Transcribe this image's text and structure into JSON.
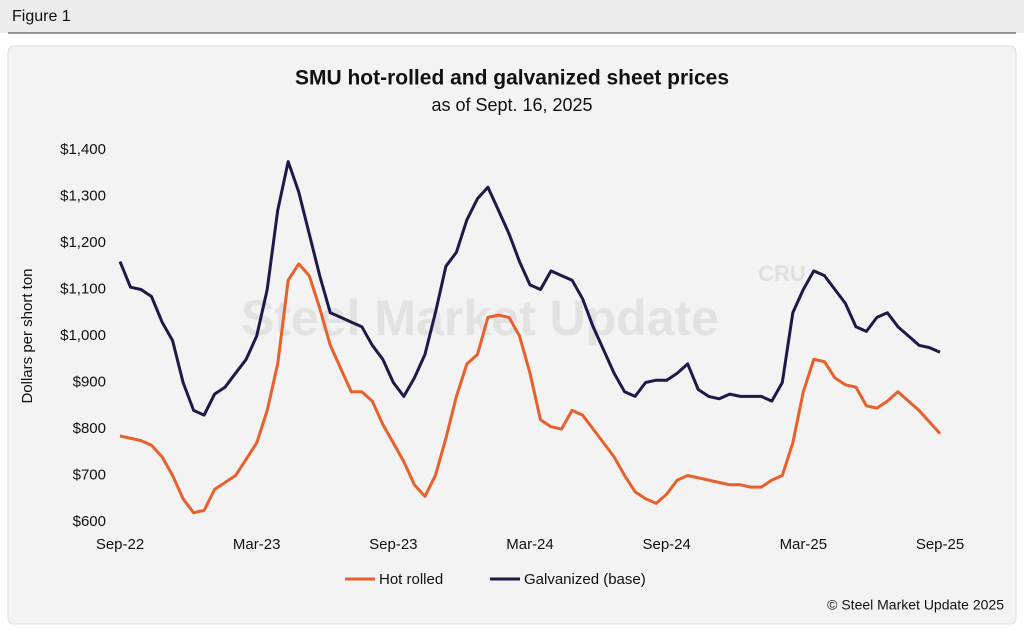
{
  "figure_label": "Figure 1",
  "chart_data": {
    "type": "line",
    "title": "SMU hot-rolled and galvanized sheet prices",
    "subtitle": "as of Sept. 16, 2025",
    "y_label": "Dollars per short ton",
    "watermark": "Steel Market Update",
    "watermark_logo": "CRU",
    "source": "© Steel Market Update 2025",
    "categories": [
      "Sep-22",
      null,
      null,
      null,
      null,
      null,
      null,
      null,
      null,
      null,
      null,
      null,
      null,
      "Mar-23",
      null,
      null,
      null,
      null,
      null,
      null,
      null,
      null,
      null,
      null,
      null,
      null,
      "Sep-23",
      null,
      null,
      null,
      null,
      null,
      null,
      null,
      null,
      null,
      null,
      null,
      null,
      "Mar-24",
      null,
      null,
      null,
      null,
      null,
      null,
      null,
      null,
      null,
      null,
      null,
      null,
      "Sep-24",
      null,
      null,
      null,
      null,
      null,
      null,
      null,
      null,
      null,
      null,
      null,
      null,
      "Mar-25",
      null,
      null,
      null,
      null,
      null,
      null,
      null,
      null,
      null,
      null,
      null,
      null,
      "Sep-25"
    ],
    "series": [
      {
        "name": "Hot rolled",
        "color": "#e8602c",
        "values": [
          785,
          780,
          775,
          765,
          740,
          700,
          650,
          620,
          625,
          670,
          685,
          700,
          735,
          770,
          840,
          940,
          1120,
          1155,
          1130,
          1060,
          980,
          930,
          880,
          880,
          860,
          810,
          770,
          730,
          680,
          655,
          700,
          780,
          870,
          940,
          960,
          1040,
          1045,
          1040,
          1000,
          920,
          820,
          805,
          800,
          840,
          830,
          800,
          770,
          740,
          700,
          665,
          650,
          640,
          660,
          690,
          700,
          695,
          690,
          685,
          680,
          680,
          675,
          675,
          690,
          700,
          770,
          880,
          950,
          945,
          910,
          895,
          890,
          850,
          845,
          860,
          880,
          860,
          840,
          815,
          790
        ]
      },
      {
        "name": "Galvanized (base)",
        "color": "#1c1a48",
        "values": [
          1160,
          1105,
          1100,
          1085,
          1030,
          990,
          900,
          840,
          830,
          875,
          890,
          920,
          950,
          1000,
          1100,
          1270,
          1375,
          1310,
          1220,
          1130,
          1050,
          1040,
          1030,
          1020,
          980,
          950,
          900,
          870,
          910,
          960,
          1050,
          1150,
          1180,
          1250,
          1295,
          1320,
          1270,
          1220,
          1160,
          1110,
          1100,
          1140,
          1130,
          1120,
          1080,
          1020,
          970,
          920,
          880,
          870,
          900,
          905,
          905,
          920,
          940,
          885,
          870,
          865,
          875,
          870,
          870,
          870,
          860,
          900,
          1050,
          1100,
          1140,
          1130,
          1100,
          1070,
          1020,
          1010,
          1040,
          1050,
          1020,
          1000,
          980,
          975,
          965
        ]
      }
    ],
    "ylim": [
      600,
      1400
    ],
    "yticks": [
      {
        "value": 600,
        "label": "$600"
      },
      {
        "value": 700,
        "label": "$700"
      },
      {
        "value": 800,
        "label": "$800"
      },
      {
        "value": 900,
        "label": "$900"
      },
      {
        "value": 1000,
        "label": "$1,000"
      },
      {
        "value": 1100,
        "label": "$1,100"
      },
      {
        "value": 1200,
        "label": "$1,200"
      },
      {
        "value": 1300,
        "label": "$1,300"
      },
      {
        "value": 1400,
        "label": "$1,400"
      }
    ],
    "grid": false,
    "legend": "bottom"
  }
}
